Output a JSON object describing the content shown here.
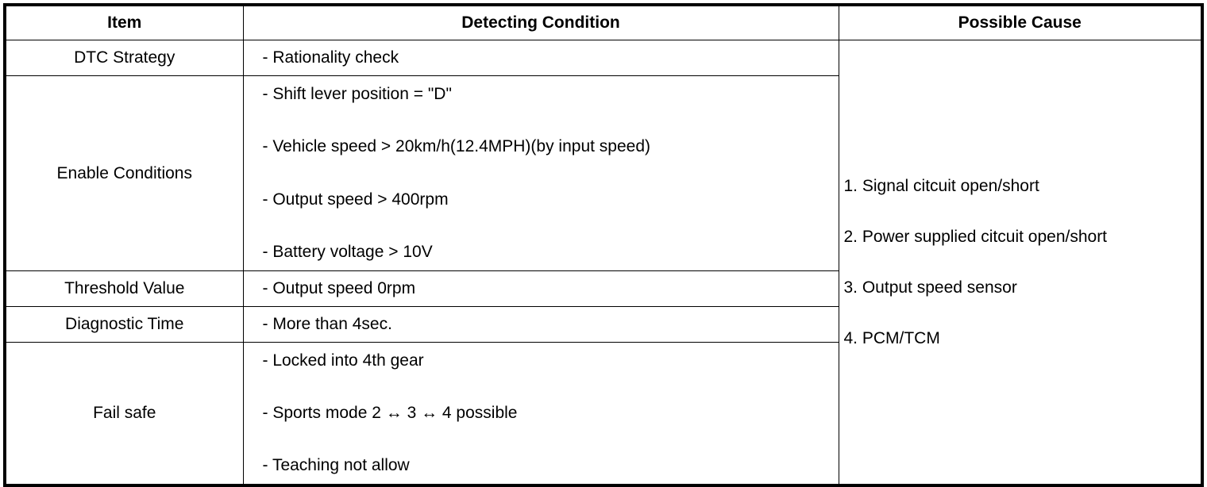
{
  "headers": {
    "item": "Item",
    "condition": "Detecting Condition",
    "cause": "Possible Cause"
  },
  "rows": [
    {
      "item": "DTC Strategy",
      "conditions": [
        "- Rationality check"
      ]
    },
    {
      "item": "Enable Conditions",
      "conditions": [
        "- Shift lever position = \"D\"",
        "- Vehicle speed > 20km/h(12.4MPH)(by input speed)",
        "- Output speed > 400rpm",
        "- Battery voltage > 10V"
      ]
    },
    {
      "item": "Threshold Value",
      "conditions": [
        "- Output speed 0rpm"
      ]
    },
    {
      "item": "Diagnostic Time",
      "conditions": [
        "- More than 4sec."
      ]
    },
    {
      "item": "Fail safe",
      "conditions": [
        "- Locked into 4th gear",
        "- Sports mode 2 ↔ 3 ↔ 4 possible",
        "- Teaching not allow"
      ]
    }
  ],
  "causes": [
    "1. Signal citcuit open/short",
    "2. Power supplied citcuit open/short",
    "3. Output speed sensor",
    "4. PCM/TCM"
  ]
}
